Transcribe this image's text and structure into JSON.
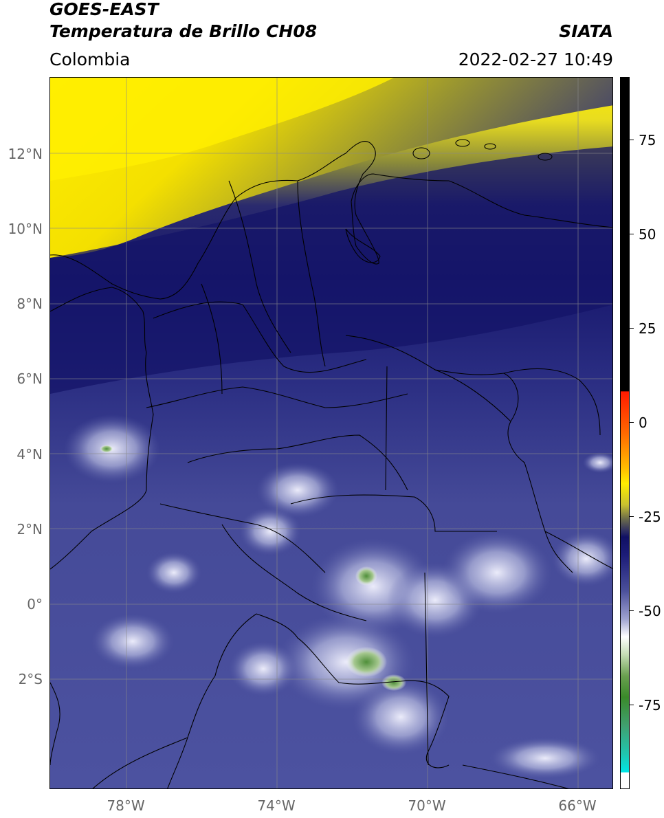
{
  "header": {
    "satellite": "GOES-EAST",
    "product": "Temperatura de Brillo CH08",
    "brand": "SIATA",
    "region": "Colombia",
    "timestamp": "2022-02-27 10:49"
  },
  "map": {
    "latitude_labels": [
      "12°N",
      "10°N",
      "8°N",
      "6°N",
      "4°N",
      "2°N",
      "0°",
      "2°S"
    ],
    "longitude_labels": [
      "78°W",
      "74°W",
      "70°W",
      "66°W"
    ],
    "gridline_color": "#8a8a8a",
    "border_color": "#000000"
  },
  "colorbar": {
    "tick_labels": [
      "75",
      "50",
      "25",
      "0",
      "-25",
      "-50",
      "-75"
    ],
    "colors": {
      "warm_top": "#000000",
      "red": "#ff2a00",
      "yellow": "#ffeb00",
      "olive": "#7a7a2a",
      "navy": "#14146e",
      "slate": "#4a4f9a",
      "white": "#ffffff",
      "green": "#3a8a2a",
      "cyan": "#00e5e5"
    }
  }
}
